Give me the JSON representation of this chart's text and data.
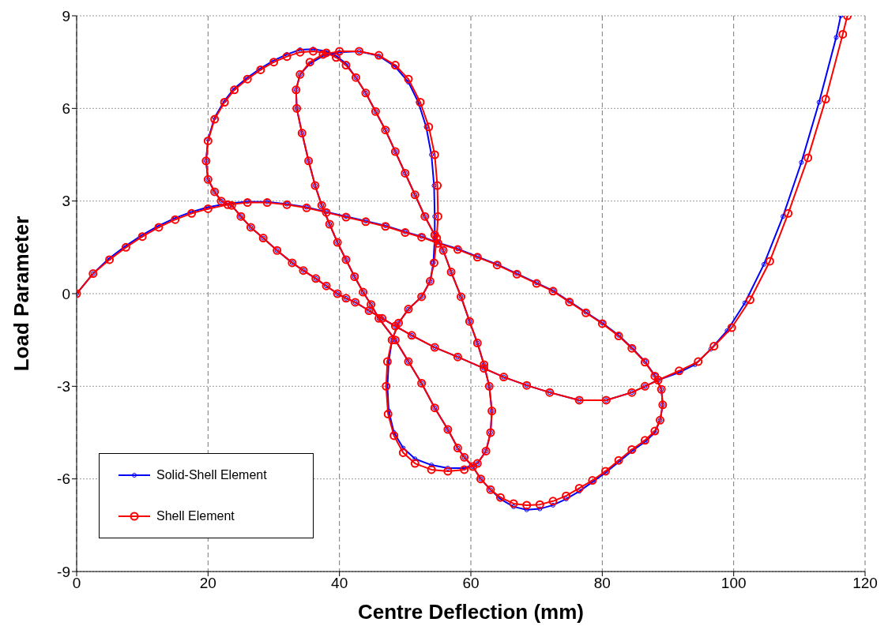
{
  "chart_data": {
    "type": "line",
    "xlabel": "Centre Deflection (mm)",
    "ylabel": "Load Parameter",
    "xlim": [
      0,
      120
    ],
    "xticks": [
      0,
      20,
      40,
      60,
      80,
      100,
      120
    ],
    "ylim": [
      -9,
      9
    ],
    "yticks": [
      -9,
      -6,
      -3,
      0,
      3,
      6,
      9
    ],
    "grid": true,
    "legend": "bottom left",
    "marker": "circle",
    "line_style": "solid",
    "series": [
      {
        "name": "Solid-Shell Element",
        "color": "#0000ff",
        "x": [
          0,
          2.5,
          5,
          7.5,
          10,
          12.5,
          15,
          17.5,
          20,
          23,
          26,
          29,
          32,
          35,
          38,
          41,
          44,
          47,
          50,
          52.5,
          55,
          58,
          61,
          64,
          67,
          70,
          72.5,
          75,
          77.5,
          80,
          82.5,
          84.5,
          86.5,
          88,
          89,
          89.2,
          88.8,
          88,
          86.5,
          84.5,
          82.5,
          80.5,
          78.5,
          76.5,
          74.5,
          72.5,
          70.5,
          68.5,
          66.5,
          64.5,
          63,
          61.5,
          60.3,
          59,
          58,
          56.5,
          54.5,
          52.5,
          50.5,
          48.5,
          46,
          44.8,
          43.6,
          42.3,
          41,
          39.7,
          38.5,
          37.3,
          36.3,
          35.3,
          34.3,
          33.5,
          33.4,
          34,
          35.5,
          37.5,
          40,
          43,
          46,
          48.5,
          50.5,
          52,
          53.2,
          54,
          54.4,
          54.5,
          54.5,
          54.3,
          53.8,
          52.5,
          50.5,
          49,
          48,
          47.5,
          47.3,
          47.5,
          48.3,
          49.7,
          51.5,
          54,
          56.5,
          59,
          61,
          62.3,
          63,
          63.2,
          62.8,
          62,
          61,
          59.8,
          58.5,
          57,
          55.8,
          54.5,
          53,
          51.5,
          50,
          48.5,
          47,
          45.5,
          44,
          42.5,
          41,
          39.5,
          38,
          36,
          34,
          32,
          30,
          28,
          26,
          24,
          22.5,
          21,
          20,
          19.7,
          20,
          21,
          22,
          23.6,
          25,
          26.5,
          28.4,
          30.5,
          32.8,
          34.5,
          36.4,
          38,
          39.7,
          41,
          42.4,
          44.5,
          46.5,
          48.5,
          51,
          54.5,
          58,
          62,
          65,
          68.5,
          72,
          76.5,
          80.6,
          84.5,
          86.5,
          88.5,
          91.7,
          94.1,
          96.5,
          99,
          101.7,
          104.6,
          107.5,
          110.3,
          113,
          115.6,
          116.3
        ],
        "values": [
          0,
          0.65,
          1.15,
          1.55,
          1.9,
          2.2,
          2.45,
          2.65,
          2.8,
          2.92,
          2.98,
          2.97,
          2.9,
          2.8,
          2.65,
          2.5,
          2.35,
          2.2,
          2,
          1.85,
          1.65,
          1.45,
          1.2,
          0.95,
          0.65,
          0.35,
          0.1,
          -0.25,
          -0.6,
          -0.95,
          -1.35,
          -1.75,
          -2.2,
          -2.65,
          -3.1,
          -3.6,
          -4.1,
          -4.5,
          -4.8,
          -5.1,
          -5.45,
          -5.8,
          -6.1,
          -6.4,
          -6.65,
          -6.85,
          -6.97,
          -7,
          -6.9,
          -6.65,
          -6.35,
          -6,
          -5.6,
          -5.3,
          -5,
          -4.4,
          -3.7,
          -2.9,
          -2.2,
          -1.5,
          -0.8,
          -0.35,
          0.05,
          0.55,
          1.1,
          1.66,
          2.25,
          2.86,
          3.5,
          4.3,
          5.2,
          6,
          6.6,
          7.1,
          7.45,
          7.7,
          7.82,
          7.85,
          7.7,
          7.35,
          6.85,
          6.2,
          5.4,
          4.5,
          3.5,
          2.5,
          1.8,
          1,
          0.4,
          -0.1,
          -0.5,
          -0.95,
          -1.5,
          -2.2,
          -3,
          -3.8,
          -4.5,
          -5,
          -5.35,
          -5.55,
          -5.65,
          -5.65,
          -5.5,
          -5.1,
          -4.5,
          -3.8,
          -3,
          -2.3,
          -1.6,
          -0.9,
          -0.1,
          0.7,
          1.4,
          1.9,
          2.5,
          3.2,
          3.9,
          4.6,
          5.3,
          5.9,
          6.5,
          7,
          7.45,
          7.7,
          7.85,
          7.92,
          7.9,
          7.75,
          7.55,
          7.3,
          7,
          6.65,
          6.25,
          5.7,
          5,
          4.3,
          3.7,
          3.3,
          3,
          2.86,
          2.5,
          2.15,
          1.8,
          1.4,
          1,
          0.75,
          0.49,
          0.25,
          0,
          -0.15,
          -0.28,
          -0.55,
          -0.8,
          -1.05,
          -1.35,
          -1.74,
          -2.05,
          -2.42,
          -2.7,
          -2.97,
          -3.2,
          -3.45,
          -3.45,
          -3.2,
          -3,
          -2.8,
          -2.55,
          -2.3,
          -1.8,
          -1.2,
          -0.3,
          0.95,
          2.5,
          4.25,
          6.2,
          8.3,
          9
        ]
      },
      {
        "name": "Shell Element",
        "color": "#ff0000",
        "x": [
          0,
          2.5,
          5,
          7.5,
          10,
          12.5,
          15,
          17.5,
          20,
          23,
          26,
          29,
          32,
          35,
          38,
          41,
          44,
          47,
          50,
          52.5,
          55,
          58,
          61,
          64,
          67,
          70,
          72.5,
          75,
          77.5,
          80,
          82.5,
          84.5,
          86.5,
          88,
          89,
          89.2,
          88.8,
          88,
          86.5,
          84.5,
          82.5,
          80.5,
          78.5,
          76.5,
          74.5,
          72.5,
          70.5,
          68.5,
          66.5,
          64.5,
          63,
          61.5,
          60.3,
          59,
          58,
          56.5,
          54.5,
          52.5,
          50.5,
          48.5,
          46,
          44.8,
          43.6,
          42.3,
          41,
          39.7,
          38.5,
          37.3,
          36.3,
          35.3,
          34.3,
          33.5,
          33.4,
          34,
          35.5,
          37.5,
          40,
          43,
          46,
          48.5,
          50.5,
          52.3,
          53.6,
          54.5,
          54.9,
          55,
          54.8,
          54.4,
          53.8,
          52.5,
          50.5,
          49,
          48,
          47.3,
          47.1,
          47.4,
          48.3,
          49.7,
          51.5,
          54,
          56.5,
          59,
          61,
          62.3,
          63,
          63.2,
          62.8,
          62,
          61,
          59.8,
          58.5,
          57,
          55.8,
          54.5,
          53,
          51.5,
          50,
          48.5,
          47,
          45.5,
          44,
          42.5,
          41,
          39.5,
          38,
          36,
          34,
          32,
          30,
          28,
          26,
          24,
          22.5,
          21,
          20,
          19.7,
          20,
          21,
          22,
          23.6,
          25,
          26.5,
          28.4,
          30.5,
          32.8,
          34.5,
          36.4,
          38,
          39.7,
          41,
          42.4,
          44.5,
          46.5,
          48.5,
          51,
          54.5,
          58,
          62,
          65,
          68.5,
          72,
          76.5,
          80.6,
          84.5,
          86.5,
          88.5,
          91.7,
          94.6,
          97,
          99.7,
          102.5,
          105.5,
          108.3,
          111.3,
          114,
          116.6,
          117.3
        ],
        "values": [
          0,
          0.65,
          1.1,
          1.5,
          1.85,
          2.15,
          2.4,
          2.6,
          2.75,
          2.88,
          2.95,
          2.95,
          2.88,
          2.78,
          2.63,
          2.48,
          2.33,
          2.18,
          1.98,
          1.83,
          1.63,
          1.43,
          1.18,
          0.93,
          0.63,
          0.33,
          0.08,
          -0.27,
          -0.62,
          -0.97,
          -1.37,
          -1.77,
          -2.22,
          -2.67,
          -3.1,
          -3.6,
          -4.1,
          -4.45,
          -4.75,
          -5.05,
          -5.4,
          -5.75,
          -6.05,
          -6.3,
          -6.55,
          -6.72,
          -6.83,
          -6.85,
          -6.8,
          -6.6,
          -6.35,
          -6,
          -5.6,
          -5.3,
          -5,
          -4.4,
          -3.7,
          -2.9,
          -2.2,
          -1.5,
          -0.8,
          -0.35,
          0.05,
          0.55,
          1.1,
          1.66,
          2.25,
          2.86,
          3.5,
          4.3,
          5.2,
          6,
          6.6,
          7.1,
          7.5,
          7.75,
          7.85,
          7.85,
          7.72,
          7.4,
          6.95,
          6.2,
          5.4,
          4.5,
          3.5,
          2.5,
          1.8,
          1,
          0.4,
          -0.1,
          -0.5,
          -0.95,
          -1.5,
          -2.2,
          -3,
          -3.9,
          -4.6,
          -5.15,
          -5.5,
          -5.7,
          -5.75,
          -5.7,
          -5.5,
          -5.1,
          -4.5,
          -3.8,
          -3,
          -2.3,
          -1.6,
          -0.9,
          -0.1,
          0.7,
          1.4,
          1.9,
          2.5,
          3.2,
          3.9,
          4.6,
          5.3,
          5.9,
          6.5,
          7,
          7.4,
          7.65,
          7.8,
          7.85,
          7.82,
          7.68,
          7.5,
          7.25,
          6.95,
          6.6,
          6.2,
          5.65,
          4.95,
          4.3,
          3.7,
          3.3,
          3,
          2.86,
          2.5,
          2.15,
          1.8,
          1.4,
          1,
          0.75,
          0.49,
          0.25,
          0,
          -0.15,
          -0.28,
          -0.55,
          -0.8,
          -1.05,
          -1.35,
          -1.74,
          -2.05,
          -2.42,
          -2.7,
          -2.97,
          -3.2,
          -3.45,
          -3.45,
          -3.2,
          -3,
          -2.8,
          -2.5,
          -2.2,
          -1.7,
          -1.1,
          -0.2,
          1.05,
          2.6,
          4.4,
          6.3,
          8.4,
          9
        ]
      }
    ]
  }
}
